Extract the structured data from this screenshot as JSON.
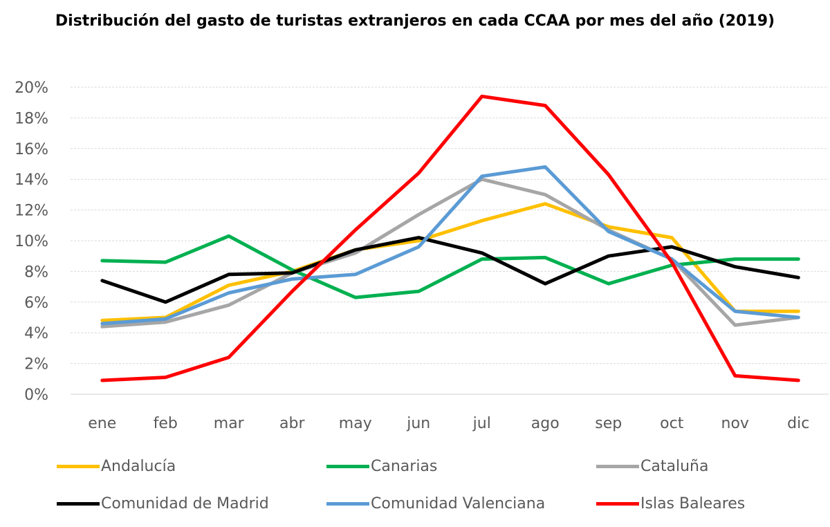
{
  "chart_data": {
    "type": "line",
    "title": "Distribución del gasto de turistas extranjeros en cada CCAA por mes del año (2019)",
    "xlabel": "",
    "ylabel": "",
    "categories": [
      "ene",
      "feb",
      "mar",
      "abr",
      "may",
      "jun",
      "jul",
      "ago",
      "sep",
      "oct",
      "nov",
      "dic"
    ],
    "ylim": [
      0,
      20
    ],
    "yticks": [
      0,
      2,
      4,
      6,
      8,
      10,
      12,
      14,
      16,
      18,
      20
    ],
    "ytick_labels": [
      "0%",
      "2%",
      "4%",
      "6%",
      "8%",
      "10%",
      "12%",
      "14%",
      "16%",
      "18%",
      "20%"
    ],
    "y_unit": "%",
    "grid": "horizontal",
    "legend_position": "bottom",
    "series": [
      {
        "name": "Andalucía",
        "color": "#FFC000",
        "values": [
          4.8,
          5.0,
          7.1,
          8.0,
          9.4,
          10.0,
          11.3,
          12.4,
          10.9,
          10.2,
          5.4,
          5.4
        ]
      },
      {
        "name": "Canarias",
        "color": "#00B050",
        "values": [
          8.7,
          8.6,
          10.3,
          8.1,
          6.3,
          6.7,
          8.8,
          8.9,
          7.2,
          8.4,
          8.8,
          8.8
        ]
      },
      {
        "name": "Cataluña",
        "color": "#A6A6A6",
        "values": [
          4.4,
          4.7,
          5.8,
          7.9,
          9.2,
          11.7,
          14.0,
          13.0,
          10.7,
          8.8,
          4.5,
          5.0
        ]
      },
      {
        "name": "Comunidad de Madrid",
        "color": "#000000",
        "values": [
          7.4,
          6.0,
          7.8,
          7.9,
          9.4,
          10.2,
          9.2,
          7.2,
          9.0,
          9.6,
          8.3,
          7.6
        ]
      },
      {
        "name": "Comunidad Valenciana",
        "color": "#5B9BD5",
        "values": [
          4.6,
          4.9,
          6.6,
          7.5,
          7.8,
          9.6,
          14.2,
          14.8,
          10.6,
          8.8,
          5.4,
          5.0
        ]
      },
      {
        "name": "Islas Baleares",
        "color": "#FF0000",
        "values": [
          0.9,
          1.1,
          2.4,
          6.7,
          10.7,
          14.4,
          19.4,
          18.8,
          14.3,
          8.6,
          1.2,
          0.9
        ]
      }
    ]
  }
}
